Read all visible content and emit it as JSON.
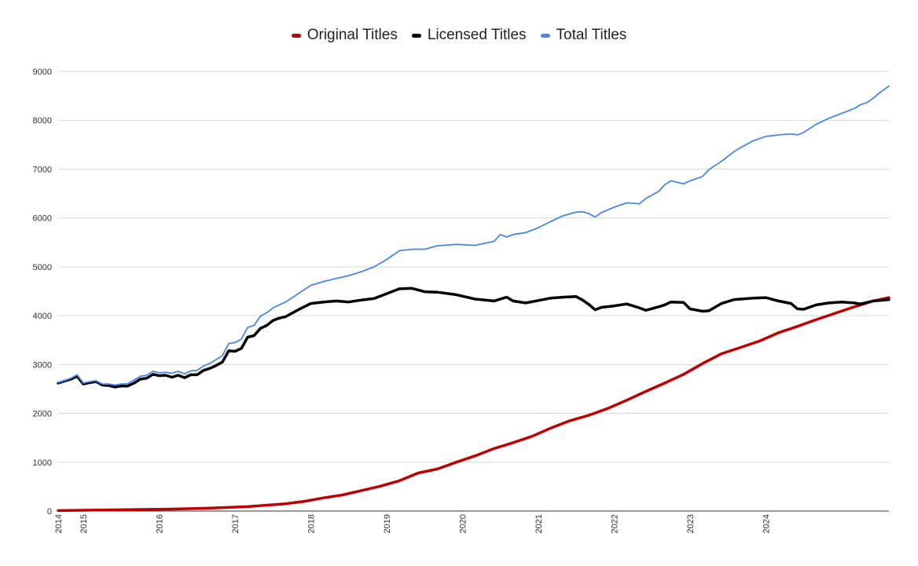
{
  "chart_data": {
    "type": "line",
    "title": "",
    "xlabel": "",
    "ylabel": "",
    "ylim": [
      0,
      9000
    ],
    "yticks": [
      0,
      1000,
      2000,
      3000,
      4000,
      5000,
      6000,
      7000,
      8000,
      9000
    ],
    "xlim": [
      2014.0,
      2024.958
    ],
    "xtick_labels": [
      {
        "label": "2014",
        "x": 2014.0
      },
      {
        "label": "2015",
        "x": 2014.333
      },
      {
        "label": "2016",
        "x": 2015.333
      },
      {
        "label": "2017",
        "x": 2016.333
      },
      {
        "label": "2018",
        "x": 2017.333
      },
      {
        "label": "2019",
        "x": 2018.333
      },
      {
        "label": "2020",
        "x": 2019.333
      },
      {
        "label": "2021",
        "x": 2020.333
      },
      {
        "label": "2022",
        "x": 2021.333
      },
      {
        "label": "2023",
        "x": 2022.333
      },
      {
        "label": "2024",
        "x": 2023.333
      }
    ],
    "grid": true,
    "legend_position": "top-center",
    "series": [
      {
        "name": "Original Titles",
        "color": "#c00000",
        "points": [
          [
            2014.0,
            10
          ],
          [
            2014.5,
            20
          ],
          [
            2015.0,
            30
          ],
          [
            2015.5,
            40
          ],
          [
            2016.0,
            60
          ],
          [
            2016.5,
            90
          ],
          [
            2017.0,
            150
          ],
          [
            2017.25,
            200
          ],
          [
            2017.5,
            270
          ],
          [
            2017.75,
            330
          ],
          [
            2018.0,
            420
          ],
          [
            2018.25,
            510
          ],
          [
            2018.5,
            620
          ],
          [
            2018.75,
            780
          ],
          [
            2019.0,
            860
          ],
          [
            2019.25,
            1000
          ],
          [
            2019.5,
            1130
          ],
          [
            2019.75,
            1280
          ],
          [
            2020.0,
            1400
          ],
          [
            2020.25,
            1530
          ],
          [
            2020.5,
            1700
          ],
          [
            2020.75,
            1850
          ],
          [
            2021.0,
            1960
          ],
          [
            2021.25,
            2100
          ],
          [
            2021.5,
            2270
          ],
          [
            2021.75,
            2450
          ],
          [
            2022.0,
            2620
          ],
          [
            2022.25,
            2800
          ],
          [
            2022.5,
            3020
          ],
          [
            2022.75,
            3220
          ],
          [
            2023.0,
            3350
          ],
          [
            2023.25,
            3480
          ],
          [
            2023.5,
            3650
          ],
          [
            2023.75,
            3780
          ],
          [
            2024.0,
            3920
          ],
          [
            2024.25,
            4050
          ],
          [
            2024.5,
            4180
          ],
          [
            2024.75,
            4300
          ],
          [
            2024.958,
            4370
          ]
        ]
      },
      {
        "name": "Licensed Titles",
        "color": "#000000",
        "points": [
          [
            2014.0,
            2620
          ],
          [
            2014.083,
            2660
          ],
          [
            2014.167,
            2700
          ],
          [
            2014.25,
            2760
          ],
          [
            2014.333,
            2600
          ],
          [
            2014.417,
            2630
          ],
          [
            2014.5,
            2650
          ],
          [
            2014.583,
            2580
          ],
          [
            2014.667,
            2570
          ],
          [
            2014.75,
            2540
          ],
          [
            2014.833,
            2560
          ],
          [
            2014.917,
            2560
          ],
          [
            2015.0,
            2620
          ],
          [
            2015.083,
            2700
          ],
          [
            2015.167,
            2720
          ],
          [
            2015.25,
            2800
          ],
          [
            2015.333,
            2770
          ],
          [
            2015.417,
            2780
          ],
          [
            2015.5,
            2740
          ],
          [
            2015.583,
            2780
          ],
          [
            2015.667,
            2730
          ],
          [
            2015.75,
            2790
          ],
          [
            2015.833,
            2790
          ],
          [
            2015.917,
            2880
          ],
          [
            2016.0,
            2920
          ],
          [
            2016.083,
            2980
          ],
          [
            2016.167,
            3050
          ],
          [
            2016.25,
            3280
          ],
          [
            2016.333,
            3270
          ],
          [
            2016.417,
            3330
          ],
          [
            2016.5,
            3560
          ],
          [
            2016.583,
            3590
          ],
          [
            2016.667,
            3740
          ],
          [
            2016.75,
            3800
          ],
          [
            2016.833,
            3900
          ],
          [
            2016.917,
            3950
          ],
          [
            2017.0,
            3980
          ],
          [
            2017.167,
            4120
          ],
          [
            2017.333,
            4250
          ],
          [
            2017.5,
            4280
          ],
          [
            2017.667,
            4300
          ],
          [
            2017.833,
            4280
          ],
          [
            2018.0,
            4320
          ],
          [
            2018.167,
            4350
          ],
          [
            2018.333,
            4450
          ],
          [
            2018.5,
            4550
          ],
          [
            2018.667,
            4560
          ],
          [
            2018.833,
            4490
          ],
          [
            2019.0,
            4480
          ],
          [
            2019.25,
            4430
          ],
          [
            2019.5,
            4340
          ],
          [
            2019.75,
            4300
          ],
          [
            2019.917,
            4380
          ],
          [
            2020.0,
            4300
          ],
          [
            2020.167,
            4260
          ],
          [
            2020.333,
            4310
          ],
          [
            2020.5,
            4360
          ],
          [
            2020.667,
            4380
          ],
          [
            2020.833,
            4390
          ],
          [
            2020.917,
            4320
          ],
          [
            2021.0,
            4230
          ],
          [
            2021.083,
            4120
          ],
          [
            2021.167,
            4170
          ],
          [
            2021.333,
            4200
          ],
          [
            2021.5,
            4240
          ],
          [
            2021.667,
            4160
          ],
          [
            2021.75,
            4110
          ],
          [
            2021.917,
            4180
          ],
          [
            2022.0,
            4220
          ],
          [
            2022.083,
            4280
          ],
          [
            2022.25,
            4270
          ],
          [
            2022.333,
            4140
          ],
          [
            2022.5,
            4090
          ],
          [
            2022.583,
            4100
          ],
          [
            2022.75,
            4250
          ],
          [
            2022.917,
            4330
          ],
          [
            2023.0,
            4340
          ],
          [
            2023.167,
            4360
          ],
          [
            2023.333,
            4370
          ],
          [
            2023.5,
            4300
          ],
          [
            2023.667,
            4250
          ],
          [
            2023.75,
            4140
          ],
          [
            2023.833,
            4130
          ],
          [
            2024.0,
            4220
          ],
          [
            2024.167,
            4260
          ],
          [
            2024.333,
            4280
          ],
          [
            2024.5,
            4260
          ],
          [
            2024.583,
            4240
          ],
          [
            2024.667,
            4270
          ],
          [
            2024.75,
            4300
          ],
          [
            2024.833,
            4310
          ],
          [
            2024.958,
            4330
          ]
        ]
      },
      {
        "name": "Total Titles",
        "color": "#4a86e8",
        "points": [
          [
            2014.0,
            2630
          ],
          [
            2014.083,
            2670
          ],
          [
            2014.167,
            2720
          ],
          [
            2014.25,
            2790
          ],
          [
            2014.333,
            2620
          ],
          [
            2014.417,
            2650
          ],
          [
            2014.5,
            2670
          ],
          [
            2014.583,
            2600
          ],
          [
            2014.667,
            2600
          ],
          [
            2014.75,
            2580
          ],
          [
            2014.833,
            2600
          ],
          [
            2014.917,
            2610
          ],
          [
            2015.0,
            2680
          ],
          [
            2015.083,
            2760
          ],
          [
            2015.167,
            2780
          ],
          [
            2015.25,
            2860
          ],
          [
            2015.333,
            2830
          ],
          [
            2015.417,
            2840
          ],
          [
            2015.5,
            2820
          ],
          [
            2015.583,
            2860
          ],
          [
            2015.667,
            2810
          ],
          [
            2015.75,
            2870
          ],
          [
            2015.833,
            2880
          ],
          [
            2015.917,
            2970
          ],
          [
            2016.0,
            3020
          ],
          [
            2016.083,
            3100
          ],
          [
            2016.167,
            3180
          ],
          [
            2016.25,
            3430
          ],
          [
            2016.333,
            3450
          ],
          [
            2016.417,
            3520
          ],
          [
            2016.5,
            3760
          ],
          [
            2016.583,
            3800
          ],
          [
            2016.667,
            3990
          ],
          [
            2016.75,
            4060
          ],
          [
            2016.833,
            4160
          ],
          [
            2016.917,
            4220
          ],
          [
            2017.0,
            4280
          ],
          [
            2017.167,
            4450
          ],
          [
            2017.333,
            4620
          ],
          [
            2017.5,
            4700
          ],
          [
            2017.667,
            4760
          ],
          [
            2017.833,
            4820
          ],
          [
            2018.0,
            4900
          ],
          [
            2018.167,
            5000
          ],
          [
            2018.333,
            5150
          ],
          [
            2018.5,
            5330
          ],
          [
            2018.667,
            5360
          ],
          [
            2018.833,
            5360
          ],
          [
            2019.0,
            5430
          ],
          [
            2019.25,
            5460
          ],
          [
            2019.5,
            5440
          ],
          [
            2019.75,
            5520
          ],
          [
            2019.833,
            5660
          ],
          [
            2019.917,
            5610
          ],
          [
            2020.0,
            5660
          ],
          [
            2020.167,
            5700
          ],
          [
            2020.333,
            5800
          ],
          [
            2020.5,
            5930
          ],
          [
            2020.667,
            6050
          ],
          [
            2020.833,
            6120
          ],
          [
            2020.917,
            6130
          ],
          [
            2021.0,
            6090
          ],
          [
            2021.083,
            6020
          ],
          [
            2021.167,
            6110
          ],
          [
            2021.333,
            6220
          ],
          [
            2021.5,
            6310
          ],
          [
            2021.667,
            6290
          ],
          [
            2021.75,
            6400
          ],
          [
            2021.917,
            6540
          ],
          [
            2022.0,
            6680
          ],
          [
            2022.083,
            6760
          ],
          [
            2022.25,
            6700
          ],
          [
            2022.333,
            6760
          ],
          [
            2022.5,
            6850
          ],
          [
            2022.583,
            6990
          ],
          [
            2022.75,
            7160
          ],
          [
            2022.917,
            7360
          ],
          [
            2023.0,
            7440
          ],
          [
            2023.167,
            7580
          ],
          [
            2023.333,
            7670
          ],
          [
            2023.5,
            7700
          ],
          [
            2023.667,
            7720
          ],
          [
            2023.75,
            7700
          ],
          [
            2023.833,
            7750
          ],
          [
            2024.0,
            7920
          ],
          [
            2024.167,
            8040
          ],
          [
            2024.333,
            8140
          ],
          [
            2024.5,
            8240
          ],
          [
            2024.583,
            8320
          ],
          [
            2024.667,
            8360
          ],
          [
            2024.75,
            8450
          ],
          [
            2024.833,
            8560
          ],
          [
            2024.958,
            8700
          ]
        ]
      }
    ]
  }
}
